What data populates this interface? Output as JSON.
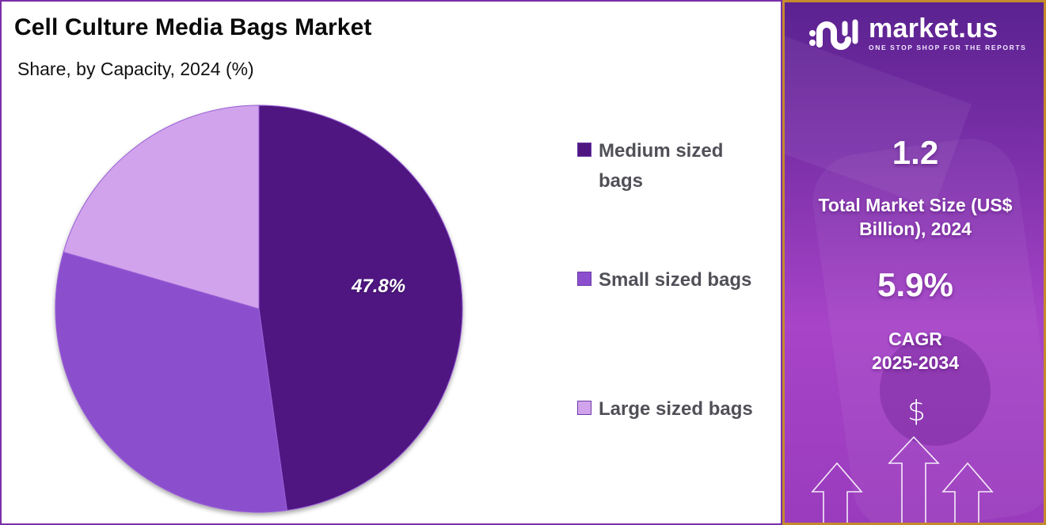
{
  "chart": {
    "title": "Cell Culture Media Bags Market",
    "subtitle": "Share, by Capacity, 2024 (%)",
    "slice_label": "47.8%"
  },
  "legend": {
    "items": [
      {
        "label": "Medium sized bags",
        "color": "#4f1682"
      },
      {
        "label": "Small sized bags",
        "color": "#8b4fce"
      },
      {
        "label": "Large sized bags",
        "color": "#d1a3ec"
      }
    ]
  },
  "sidebar": {
    "brand": "market.us",
    "tagline": "ONE STOP SHOP FOR THE REPORTS",
    "market_size_value": "1.2",
    "market_size_label": "Total Market Size (US$ Billion), 2024",
    "cagr_value": "5.9%",
    "cagr_label_line1": "CAGR",
    "cagr_label_line2": "2025-2034",
    "dollar_symbol": "$"
  },
  "colors": {
    "accent_border_left": "#7a2fa8",
    "accent_border_right": "#c48a2c",
    "medium": "#4f1682",
    "small": "#8b4fce",
    "large": "#d1a3ec"
  },
  "chart_data": {
    "type": "pie",
    "title": "Cell Culture Media Bags Market",
    "subtitle": "Share, by Capacity, 2024 (%)",
    "categories": [
      "Medium sized bags",
      "Small sized bags",
      "Large sized bags"
    ],
    "values": [
      47.8,
      31.7,
      20.5
    ],
    "labeled_values": {
      "Medium sized bags": 47.8
    },
    "colors": [
      "#4f1682",
      "#8b4fce",
      "#d1a3ec"
    ],
    "start_angle": "12 o'clock, clockwise",
    "legend_position": "right",
    "annotations": {
      "total_market_size_usd_billion_2024": 1.2,
      "cagr_2025_2034_percent": 5.9
    }
  }
}
